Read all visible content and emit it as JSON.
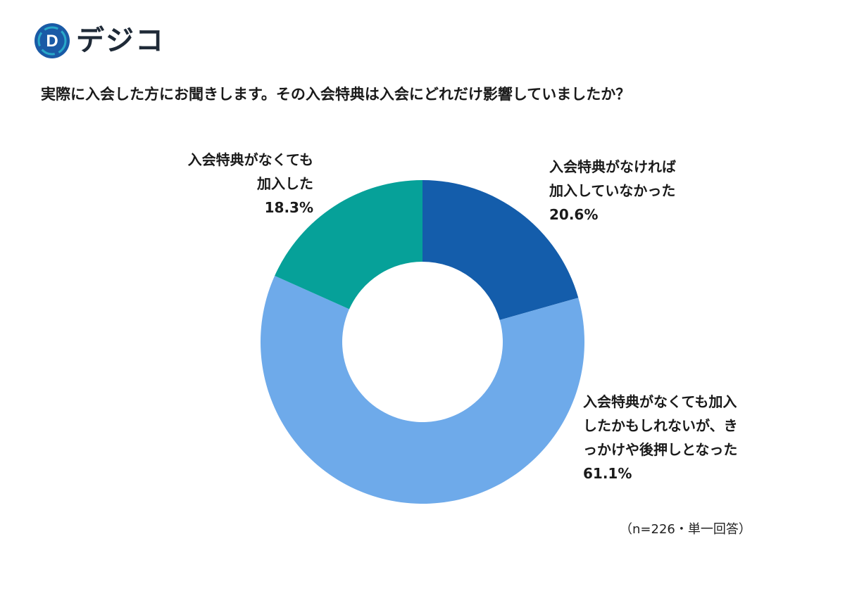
{
  "brand": {
    "name": "デジコ",
    "logo_letter": "D",
    "logo_color": "#1a5aa6",
    "logo_accent": "#29a8c9"
  },
  "title": "実際に入会した方にお聞きします。その入会特典は入会にどれだけ影響していましたか？",
  "note": "（n=226・単一回答）",
  "chart_data": {
    "type": "pie",
    "donut": true,
    "start_angle_deg": 0,
    "direction": "clockwise",
    "slices": [
      {
        "label_lines": [
          "入会特典がなければ",
          "加入していなかった"
        ],
        "value": 20.6,
        "value_text": "20.6%",
        "color": "#145dab"
      },
      {
        "label_lines": [
          "入会特典がなくても加入",
          "したかもしれないが、き",
          "っかけや後押しとなった"
        ],
        "value": 61.1,
        "value_text": "61.1%",
        "color": "#6eaaea"
      },
      {
        "label_lines": [
          "入会特典がなくても",
          "加入した"
        ],
        "value": 18.3,
        "value_text": "18.3%",
        "color": "#06a199"
      }
    ],
    "legend": "none",
    "data_labels": "outside"
  }
}
